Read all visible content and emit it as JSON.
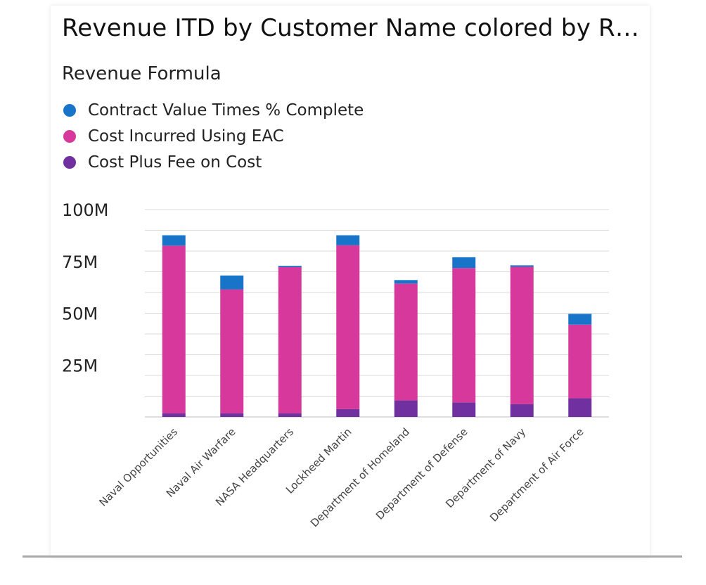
{
  "chart_data": {
    "type": "bar",
    "stacked": true,
    "title": "Revenue ITD by Customer Name colored by R…",
    "legend_title": "Revenue Formula",
    "legend_position": "top-left",
    "grid": true,
    "categories": [
      "Naval Opportunities",
      "Naval Air Warfare",
      "NASA Headquarters",
      "Lockheed Martin",
      "Department of Homeland",
      "Department of Defense",
      "Department of Navy",
      "Department of Air Force"
    ],
    "series": [
      {
        "name": "Cost Plus Fee on Cost",
        "color": "#7030A0",
        "values": [
          1.8,
          1.8,
          1.8,
          3.8,
          8.0,
          7.0,
          6.2,
          9.0
        ]
      },
      {
        "name": "Cost Incurred Using EAC",
        "color": "#D6389C",
        "values": [
          80.8,
          59.7,
          70.5,
          79.0,
          56.3,
          64.8,
          66.2,
          35.5
        ]
      },
      {
        "name": "Contract Value Times % Complete",
        "color": "#1874C8",
        "values": [
          5.0,
          6.7,
          0.6,
          4.8,
          1.7,
          5.2,
          0.7,
          5.2
        ]
      }
    ],
    "y_ticks": [
      {
        "value": 25,
        "label": "25M"
      },
      {
        "value": 50,
        "label": "50M"
      },
      {
        "value": 75,
        "label": "75M"
      },
      {
        "value": 100,
        "label": "100M"
      }
    ],
    "ylim": [
      0,
      100
    ],
    "xlabel": "",
    "ylabel": ""
  }
}
